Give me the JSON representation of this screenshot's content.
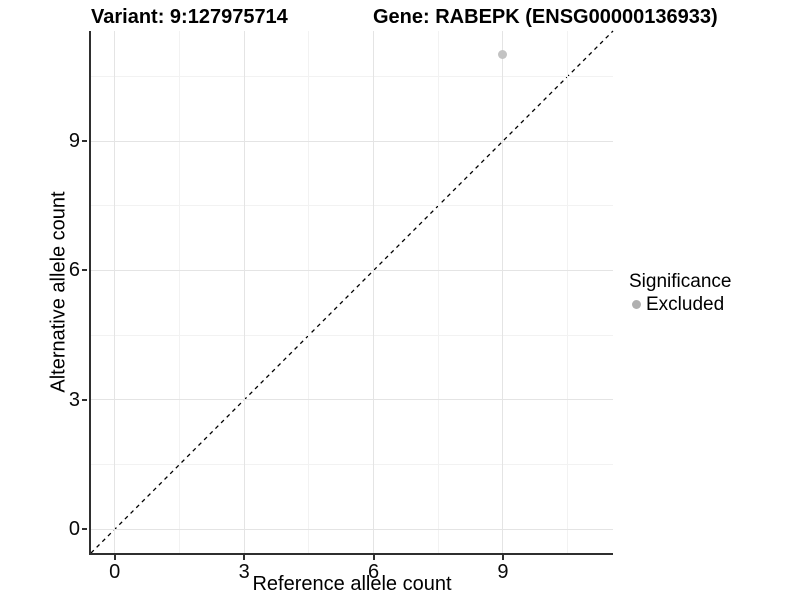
{
  "figure": {
    "variant_title": "Variant: 9:127975714",
    "gene_title": "Gene: RABEPK (ENSG00000136933)"
  },
  "chart_data": {
    "type": "scatter",
    "title": "Variant: 9:127975714   Gene: RABEPK (ENSG00000136933)",
    "xlabel": "Reference allele count",
    "ylabel": "Alternative allele count",
    "xlim": [
      -0.55,
      11.55
    ],
    "ylim": [
      -0.55,
      11.55
    ],
    "xticks": [
      0,
      3,
      6,
      9
    ],
    "yticks": [
      0,
      3,
      6,
      9
    ],
    "minor_ticks": [
      1.5,
      4.5,
      7.5,
      10.5
    ],
    "grid": "major and minor, light gray on white",
    "series": [
      {
        "name": "Excluded",
        "points": [
          {
            "x": 9,
            "y": 11
          }
        ]
      }
    ],
    "reference_line": {
      "kind": "identity y=x",
      "style": "dashed",
      "from": [
        -0.55,
        -0.55
      ],
      "to": [
        11.55,
        11.55
      ]
    },
    "legend": {
      "title": "Significance",
      "position": "right",
      "items": [
        {
          "label": "Excluded",
          "color": "#b0b0b0"
        }
      ]
    },
    "colors": {
      "point": "#c3c3c3",
      "legend_dot": "#b0b0b0",
      "grid_major": "#e4e4e4",
      "grid_minor": "#f2f2f2",
      "axis": "#2f2f2f",
      "reference_line": "#000000",
      "text": "#000000"
    }
  }
}
